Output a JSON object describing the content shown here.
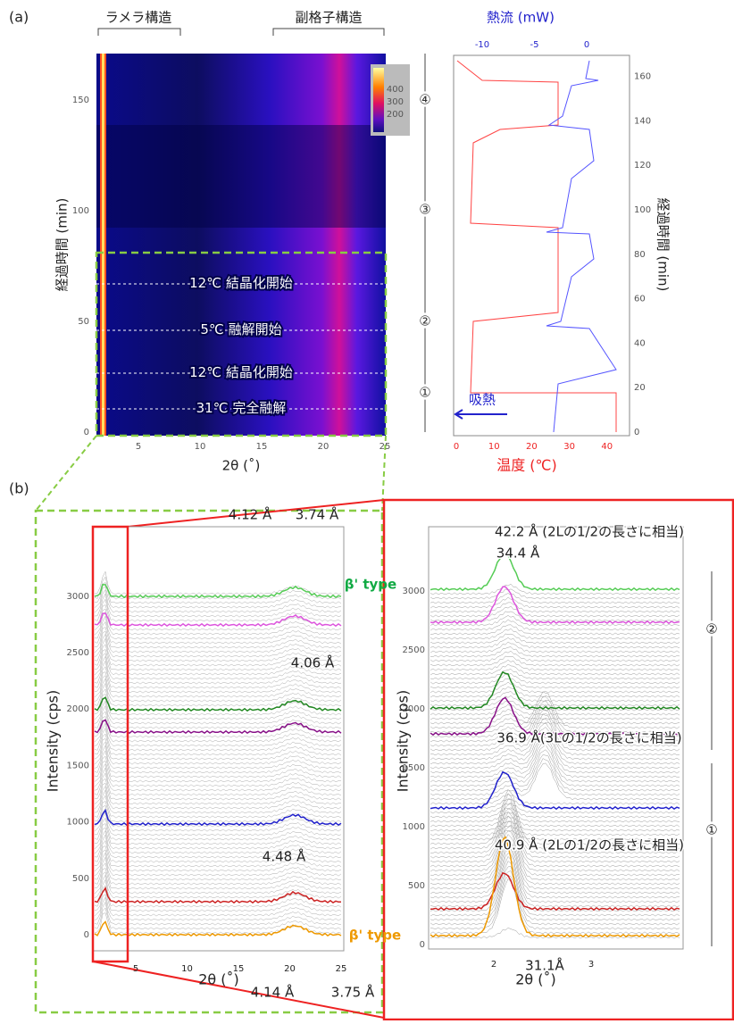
{
  "panel_a": {
    "label": "(a)",
    "heatmap": {
      "brackets": [
        "ラメラ構造",
        "副格子構造"
      ],
      "y_label": "経過時間 (min)",
      "x_label": "2θ (˚)",
      "yticks": [
        "0",
        "50",
        "100",
        "150"
      ],
      "xticks": [
        "5",
        "10",
        "15",
        "20",
        "25"
      ],
      "colorbar_ticks": [
        "400",
        "300",
        "200"
      ],
      "annotations": [
        "12℃ 結晶化開始",
        "5℃ 融解開始",
        "12℃ 結晶化開始",
        "31℃ 完全融解"
      ]
    },
    "stages": [
      "④",
      "③",
      "②",
      "①"
    ],
    "dsc": {
      "top_label": "熱流 (mW)",
      "top_ticks": [
        "-10",
        "-5",
        "0"
      ],
      "bottom_label": "温度 (℃)",
      "bottom_ticks": [
        "0",
        "10",
        "20",
        "30",
        "40"
      ],
      "right_label": "経過時間 (min)",
      "right_ticks": [
        "0",
        "20",
        "40",
        "60",
        "80",
        "100",
        "120",
        "140",
        "160"
      ],
      "arrow_label": "吸熱"
    }
  },
  "panel_b": {
    "label": "(b)",
    "left": {
      "y_label": "Intensity (cps)",
      "x_label": "2θ (˚)",
      "yticks": [
        "0",
        "500",
        "1000",
        "1500",
        "2000",
        "2500",
        "3000"
      ],
      "xticks": [
        "5",
        "10",
        "15",
        "20",
        "25"
      ],
      "annotations": [
        "4.12 Å",
        "3.74 Å",
        "β' type",
        "4.06 Å",
        "4.48 Å",
        "β' type",
        "4.14 Å",
        "3.75 Å"
      ]
    },
    "right": {
      "y_label": "Intensity (cps)",
      "x_label": "2θ (˚)",
      "yticks": [
        "0",
        "500",
        "1000",
        "1500",
        "2000",
        "2500",
        "3000"
      ],
      "xticks": [
        "2",
        "3"
      ],
      "annotations": [
        "42.2 Å (2Lの1/2の長さに相当)",
        "34.4 Å",
        "36.9 Å(3Lの1/2の長さに相当)",
        "40.9 Å (2Lの1/2の長さに相当)",
        "31.1Å"
      ],
      "stages": [
        "②",
        "①"
      ]
    }
  }
}
